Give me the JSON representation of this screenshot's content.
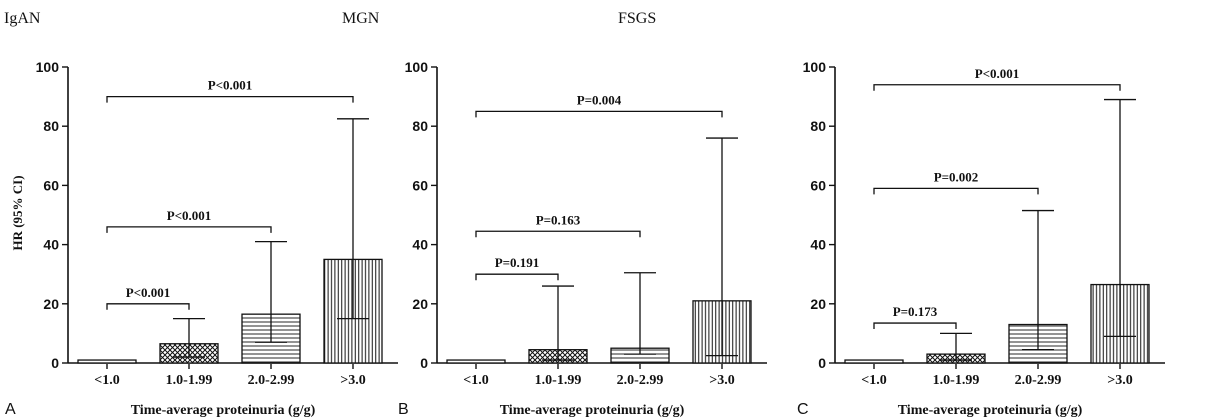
{
  "group_titles": [
    "IgAN",
    "MGN",
    "FSGS"
  ],
  "y_axis_label": "HR (95% CI)",
  "colors": {
    "ink": "#111111",
    "background": "#ffffff"
  },
  "chart_data": [
    {
      "type": "bar",
      "panel": "A",
      "title": "",
      "xlabel": "Time-average proteinuria (g/g)",
      "ylabel": "HR (95% CI)",
      "ylim": [
        0,
        100
      ],
      "yticks": [
        0,
        20,
        40,
        60,
        80,
        100
      ],
      "categories": [
        "<1.0",
        "1.0-1.99",
        "2.0-2.99",
        ">3.0"
      ],
      "values": [
        1,
        6.5,
        16.5,
        35
      ],
      "ci_lower": [
        1,
        2,
        7,
        15
      ],
      "ci_upper": [
        1,
        15,
        41,
        82.5
      ],
      "patterns": [
        "none",
        "crosshatch",
        "horizontal",
        "vertical"
      ],
      "comparisons": [
        {
          "from": 0,
          "to": 1,
          "label": "P<0.001",
          "level": 20
        },
        {
          "from": 0,
          "to": 2,
          "label": "P<0.001",
          "level": 46
        },
        {
          "from": 0,
          "to": 3,
          "label": "P<0.001",
          "level": 90
        }
      ]
    },
    {
      "type": "bar",
      "panel": "B",
      "title": "",
      "xlabel": "Time-average proteinuria (g/g)",
      "ylabel": "",
      "ylim": [
        0,
        100
      ],
      "yticks": [
        0,
        20,
        40,
        60,
        80,
        100
      ],
      "categories": [
        "<1.0",
        "1.0-1.99",
        "2.0-2.99",
        ">3.0"
      ],
      "values": [
        1,
        4.5,
        5,
        21
      ],
      "ci_lower": [
        1,
        1,
        3,
        2.5
      ],
      "ci_upper": [
        1,
        26,
        30.5,
        76
      ],
      "patterns": [
        "none",
        "crosshatch",
        "horizontal",
        "vertical"
      ],
      "comparisons": [
        {
          "from": 0,
          "to": 1,
          "label": "P=0.191",
          "level": 30
        },
        {
          "from": 0,
          "to": 2,
          "label": "P=0.163",
          "level": 44.5
        },
        {
          "from": 0,
          "to": 3,
          "label": "P=0.004",
          "level": 85
        }
      ]
    },
    {
      "type": "bar",
      "panel": "C",
      "title": "",
      "xlabel": "Time-average proteinuria (g/g)",
      "ylabel": "",
      "ylim": [
        0,
        100
      ],
      "yticks": [
        0,
        20,
        40,
        60,
        80,
        100
      ],
      "categories": [
        "<1.0",
        "1.0-1.99",
        "2.0-2.99",
        ">3.0"
      ],
      "values": [
        1,
        3,
        13,
        26.5
      ],
      "ci_lower": [
        1,
        1,
        4.5,
        9
      ],
      "ci_upper": [
        1,
        10,
        51.5,
        89
      ],
      "patterns": [
        "none",
        "crosshatch",
        "horizontal",
        "vertical"
      ],
      "comparisons": [
        {
          "from": 0,
          "to": 1,
          "label": "P=0.173",
          "level": 13.5
        },
        {
          "from": 0,
          "to": 2,
          "label": "P=0.002",
          "level": 59
        },
        {
          "from": 0,
          "to": 3,
          "label": "P<0.001",
          "level": 94
        }
      ]
    }
  ]
}
